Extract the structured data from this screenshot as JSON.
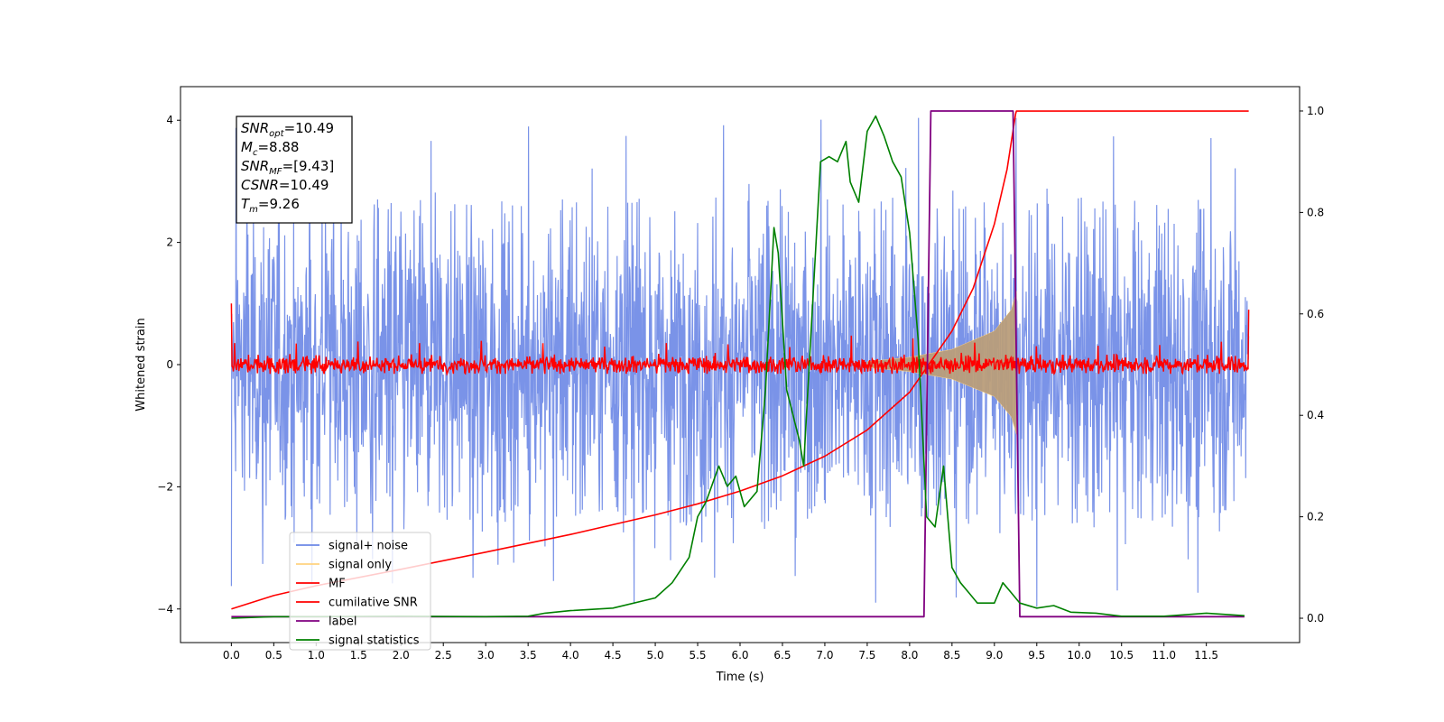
{
  "chart_data": {
    "type": "line",
    "title": "",
    "xlabel": "Time (s)",
    "ylabel": "Whitened strain",
    "xlim": [
      -0.6,
      12.6
    ],
    "ylim": [
      -4.55,
      4.55
    ],
    "y2lim": [
      -0.048,
      1.048
    ],
    "x_ticks": [
      "0.0",
      "0.5",
      "1.0",
      "1.5",
      "2.0",
      "2.5",
      "3.0",
      "3.5",
      "4.0",
      "4.5",
      "5.0",
      "5.5",
      "6.0",
      "6.5",
      "7.0",
      "7.5",
      "8.0",
      "8.5",
      "9.0",
      "9.5",
      "10.0",
      "10.5",
      "11.0",
      "11.5"
    ],
    "y_ticks": [
      "4",
      "2",
      "0",
      "−2",
      "−4"
    ],
    "y2_ticks": [
      "1.0",
      "0.8",
      "0.6",
      "0.4",
      "0.2",
      "0.0"
    ],
    "legend": {
      "placement": "lower-left",
      "entries": [
        "signal+ noise",
        "signal only",
        "MF",
        "cumilative SNR",
        "label",
        "signal statistics"
      ]
    },
    "annotation": {
      "lines": [
        {
          "name": "SNR",
          "sub": "opt",
          "value": "=10.49"
        },
        {
          "name": "M",
          "sub": "c",
          "value": "=8.88"
        },
        {
          "name": "SNR",
          "sub": "MF",
          "value": "=[9.43]"
        },
        {
          "name": "CSNR",
          "sub": "",
          "value": "=10.49"
        },
        {
          "name": "T",
          "sub": "m",
          "value": "=9.26"
        }
      ]
    },
    "colors": {
      "noise": "#6b87e6",
      "signal": "#ffd27f",
      "signal_overlap": "#b99d7a",
      "mf": "#ff0000",
      "csnr": "#ff0000",
      "label": "#800080",
      "stats": "#008000"
    },
    "series": [
      {
        "name": "signal+ noise",
        "axis": "left",
        "x_range": [
          0,
          12
        ],
        "band_upper": 2.8,
        "band_lower": -2.6,
        "peak_max": 4.15,
        "peak_min": -4.05
      },
      {
        "name": "signal only",
        "axis": "left",
        "x_range": [
          7.5,
          9.26
        ],
        "envelope_x": [
          7.5,
          8.0,
          8.5,
          9.0,
          9.2,
          9.26
        ],
        "envelope_amp": [
          0.05,
          0.12,
          0.25,
          0.55,
          0.9,
          1.2
        ]
      },
      {
        "name": "MF",
        "axis": "left",
        "x_range": [
          0,
          12
        ],
        "start_value": 1.0,
        "end_value": 0.9,
        "band_upper": 0.2,
        "band_lower": -0.15
      },
      {
        "name": "cumilative SNR",
        "axis": "left",
        "x": [
          0.0,
          0.5,
          1.0,
          2.0,
          3.0,
          4.0,
          5.0,
          5.5,
          6.0,
          6.5,
          7.0,
          7.5,
          8.0,
          8.5,
          8.75,
          9.0,
          9.15,
          9.25,
          9.26,
          12.0
        ],
        "values": [
          -4.0,
          -3.78,
          -3.62,
          -3.35,
          -3.07,
          -2.78,
          -2.46,
          -2.28,
          -2.07,
          -1.82,
          -1.5,
          -1.07,
          -0.45,
          0.55,
          1.25,
          2.3,
          3.2,
          4.1,
          4.15,
          4.15
        ]
      },
      {
        "name": "label",
        "axis": "right",
        "x": [
          0.0,
          8.17,
          8.25,
          9.22,
          9.3,
          11.95
        ],
        "values": [
          0.003,
          0.003,
          1.0,
          1.0,
          0.003,
          0.003
        ]
      },
      {
        "name": "signal statistics",
        "axis": "right",
        "x": [
          0.0,
          0.5,
          1.0,
          2.0,
          3.0,
          3.5,
          3.7,
          4.0,
          4.5,
          5.0,
          5.2,
          5.4,
          5.5,
          5.6,
          5.75,
          5.85,
          5.95,
          6.05,
          6.2,
          6.3,
          6.4,
          6.45,
          6.55,
          6.7,
          6.75,
          6.85,
          6.95,
          7.05,
          7.15,
          7.25,
          7.3,
          7.4,
          7.5,
          7.6,
          7.7,
          7.8,
          7.9,
          8.0,
          8.1,
          8.2,
          8.3,
          8.4,
          8.5,
          8.6,
          8.7,
          8.8,
          8.9,
          9.0,
          9.1,
          9.2,
          9.3,
          9.5,
          9.7,
          9.9,
          10.2,
          10.5,
          11.0,
          11.5,
          11.95
        ],
        "values": [
          0.0,
          0.003,
          0.003,
          0.004,
          0.003,
          0.004,
          0.01,
          0.015,
          0.02,
          0.04,
          0.07,
          0.12,
          0.2,
          0.23,
          0.3,
          0.26,
          0.28,
          0.22,
          0.25,
          0.45,
          0.77,
          0.72,
          0.45,
          0.35,
          0.3,
          0.6,
          0.9,
          0.91,
          0.9,
          0.94,
          0.86,
          0.82,
          0.96,
          0.99,
          0.95,
          0.9,
          0.87,
          0.76,
          0.55,
          0.2,
          0.18,
          0.3,
          0.1,
          0.07,
          0.05,
          0.03,
          0.03,
          0.03,
          0.07,
          0.05,
          0.03,
          0.02,
          0.025,
          0.012,
          0.01,
          0.004,
          0.004,
          0.01,
          0.005
        ]
      }
    ]
  }
}
